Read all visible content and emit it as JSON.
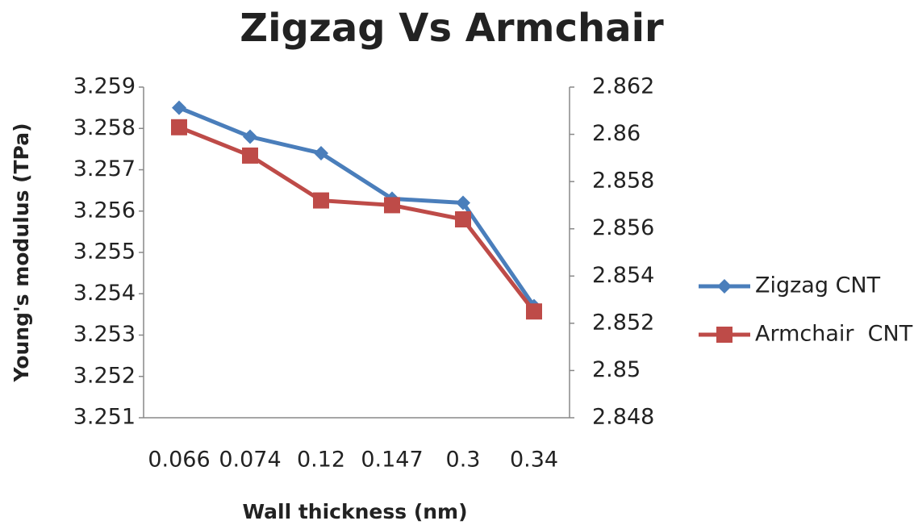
{
  "chart_data": {
    "type": "line",
    "title": "Zigzag Vs Armchair",
    "x_label": "Wall thickness (nm)",
    "y_label": "Young's modulus (TPa)",
    "categories": [
      "0.066",
      "0.074",
      "0.12",
      "0.147",
      "0.3",
      "0.34"
    ],
    "series": [
      {
        "name": "Zigzag CNT",
        "color": "#4a7ebb",
        "marker": "diamond",
        "axis": "y",
        "values": [
          3.2585,
          3.2578,
          3.2574,
          3.2563,
          3.2562,
          3.2537
        ]
      },
      {
        "name": "Armchair  CNT",
        "color": "#be4b48",
        "marker": "square",
        "axis": "y2",
        "values": [
          2.8603,
          2.8591,
          2.8572,
          2.857,
          2.8564,
          2.8525
        ]
      }
    ],
    "ylim": [
      3.251,
      3.259
    ],
    "yticks": [
      3.251,
      3.252,
      3.253,
      3.254,
      3.255,
      3.256,
      3.257,
      3.258,
      3.259
    ],
    "y2lim": [
      2.848,
      2.862
    ],
    "y2ticks": [
      2.848,
      2.85,
      2.852,
      2.854,
      2.856,
      2.858,
      2.86,
      2.862
    ],
    "grid": false,
    "legend": "right"
  }
}
